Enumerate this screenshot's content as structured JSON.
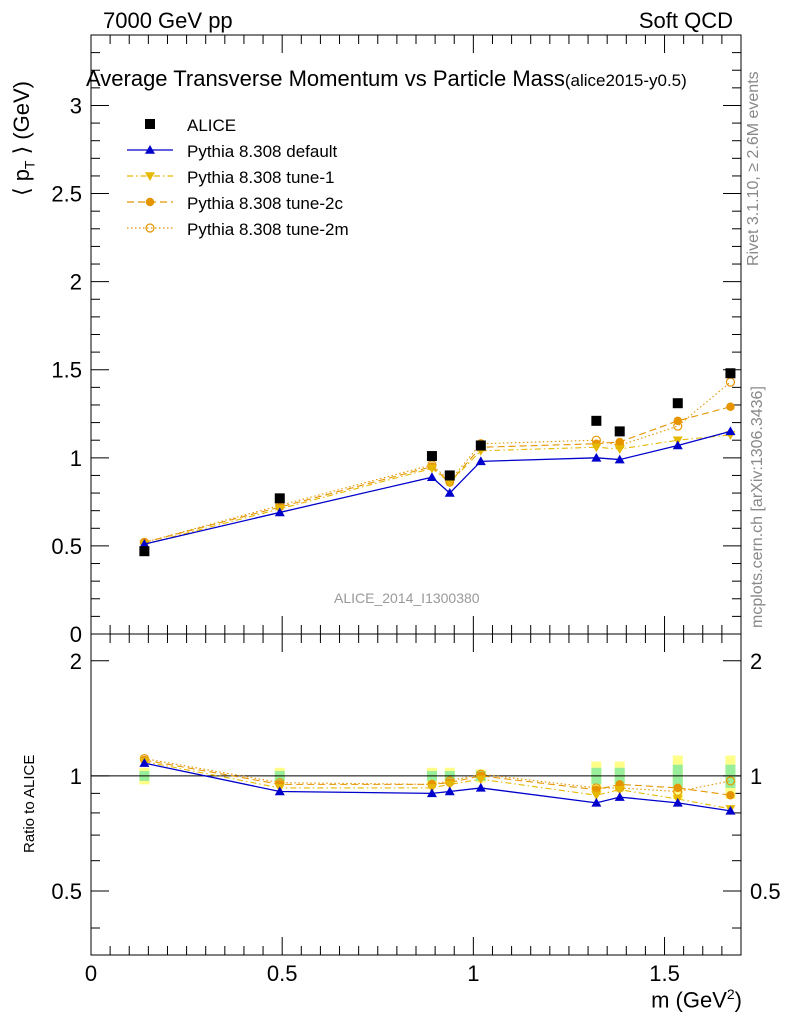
{
  "header": {
    "left": "7000 GeV pp",
    "right": "Soft QCD"
  },
  "side_labels": {
    "rivet": "Rivet 3.1.10, ≥ 2.6M events",
    "mcplots": "mcplots.cern.ch [arXiv:1306.3436]"
  },
  "chart_data": {
    "type": "line",
    "title": "Average Transverse Momentum vs Particle Mass",
    "title_suffix": "(alice2015-y0.5)",
    "watermark": "ALICE_2014_I1300380",
    "xlabel": "m (GeV",
    "xlabel_sup": "2",
    "xlabel_close": ")",
    "ylabel_main": "⟨ p",
    "ylabel_sub": "T",
    "ylabel_close": " ⟩ (GeV)",
    "ratio_ylabel": "Ratio to ALICE",
    "xlim": [
      0,
      1.7
    ],
    "ylim": [
      0,
      3.4
    ],
    "ratio_ylim": [
      0.34,
      2.35
    ],
    "ratio_log": true,
    "x_ticks": [
      "0",
      "0.5",
      "1",
      "1.5"
    ],
    "y_ticks": [
      "0",
      "0.5",
      "1",
      "1.5",
      "2",
      "2.5",
      "3"
    ],
    "ratio_ticks": [
      "0.5",
      "1",
      "2"
    ],
    "x": [
      0.1396,
      0.4937,
      0.8917,
      0.9383,
      1.0195,
      1.3217,
      1.3828,
      1.5346,
      1.6724
    ],
    "data": {
      "name": "ALICE",
      "color": "#000000",
      "values": [
        0.47,
        0.77,
        1.01,
        0.9,
        1.07,
        1.21,
        1.15,
        1.31,
        1.48
      ]
    },
    "series": [
      {
        "name": "Pythia 8.308 default",
        "color": "#0000cc",
        "marker": "triangle-up",
        "line": "solid",
        "values": [
          0.51,
          0.69,
          0.89,
          0.8,
          0.98,
          1.0,
          0.99,
          1.07,
          1.15
        ],
        "ratio": [
          1.08,
          0.91,
          0.9,
          0.91,
          0.93,
          0.85,
          0.88,
          0.85,
          0.81
        ]
      },
      {
        "name": "Pythia 8.308 tune-1",
        "color": "#e6b800",
        "marker": "triangle-down",
        "line": "dashdot",
        "values": [
          0.51,
          0.71,
          0.94,
          0.86,
          1.04,
          1.06,
          1.05,
          1.1,
          1.13
        ],
        "ratio": [
          1.09,
          0.93,
          0.93,
          0.95,
          0.98,
          0.89,
          0.92,
          0.87,
          0.82
        ]
      },
      {
        "name": "Pythia 8.308 tune-2c",
        "color": "#e69500",
        "marker": "circle",
        "line": "dashed",
        "values": [
          0.52,
          0.72,
          0.95,
          0.86,
          1.06,
          1.08,
          1.09,
          1.21,
          1.29
        ],
        "ratio": [
          1.1,
          0.95,
          0.95,
          0.96,
          1.0,
          0.92,
          0.95,
          0.93,
          0.89
        ]
      },
      {
        "name": "Pythia 8.308 tune-2m",
        "color": "#e69500",
        "marker": "circle-open",
        "line": "dotted",
        "values": [
          0.52,
          0.73,
          0.96,
          0.87,
          1.08,
          1.1,
          1.07,
          1.18,
          1.43
        ],
        "ratio": [
          1.11,
          0.96,
          0.95,
          0.97,
          1.01,
          0.93,
          0.93,
          0.91,
          0.97
        ]
      }
    ],
    "ratio_band": {
      "stat": [
        0.03,
        0.03,
        0.03,
        0.03,
        0.03,
        0.05,
        0.05,
        0.07,
        0.07
      ],
      "total": [
        0.05,
        0.05,
        0.05,
        0.05,
        0.04,
        0.09,
        0.09,
        0.13,
        0.13
      ]
    },
    "grid": false,
    "legend_position": "top-left"
  }
}
